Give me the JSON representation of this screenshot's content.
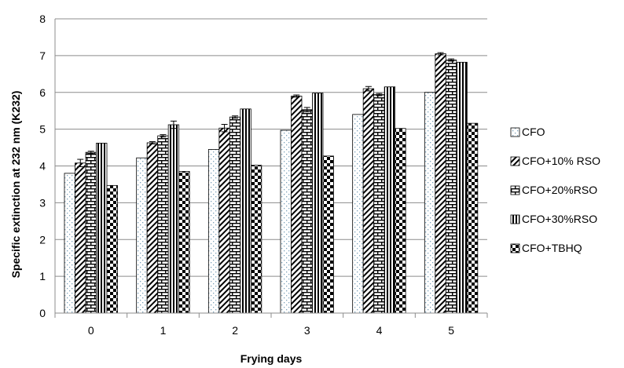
{
  "chart_data": {
    "type": "bar",
    "xlabel": "Frying days",
    "ylabel": "Specific  extinction at 232 nm (K232)",
    "categories": [
      "0",
      "1",
      "2",
      "3",
      "4",
      "5"
    ],
    "ylim": [
      0,
      8
    ],
    "yticks": [
      "0",
      "1",
      "2",
      "3",
      "4",
      "5",
      "6",
      "7",
      "8"
    ],
    "grid": "horizontal",
    "legend_position": "right",
    "series": [
      {
        "name": "CFO",
        "pattern": "dots",
        "values": [
          3.8,
          4.22,
          4.45,
          4.97,
          5.4,
          6.0
        ],
        "errors": [
          0,
          0,
          0,
          0,
          0,
          0
        ]
      },
      {
        "name": "CFO+10% RSO",
        "pattern": "diagonal",
        "values": [
          4.08,
          4.63,
          5.03,
          5.9,
          6.1,
          7.05
        ],
        "errors": [
          0.1,
          0.03,
          0.1,
          0.03,
          0.06,
          0.03
        ]
      },
      {
        "name": "CFO+20%RSO",
        "pattern": "brick",
        "values": [
          4.37,
          4.82,
          5.33,
          5.53,
          5.94,
          6.88
        ],
        "errors": [
          0.03,
          0.03,
          0.03,
          0.06,
          0.03,
          0.03
        ]
      },
      {
        "name": "CFO+30%RSO",
        "pattern": "vertical",
        "values": [
          4.62,
          5.12,
          5.55,
          5.98,
          6.15,
          6.82
        ],
        "errors": [
          0,
          0.1,
          0,
          0,
          0,
          0
        ]
      },
      {
        "name": "CFO+TBHQ",
        "pattern": "checker",
        "values": [
          3.47,
          3.85,
          4.02,
          4.27,
          5.02,
          5.16
        ],
        "errors": [
          0,
          0,
          0,
          0,
          0,
          0
        ]
      }
    ]
  }
}
